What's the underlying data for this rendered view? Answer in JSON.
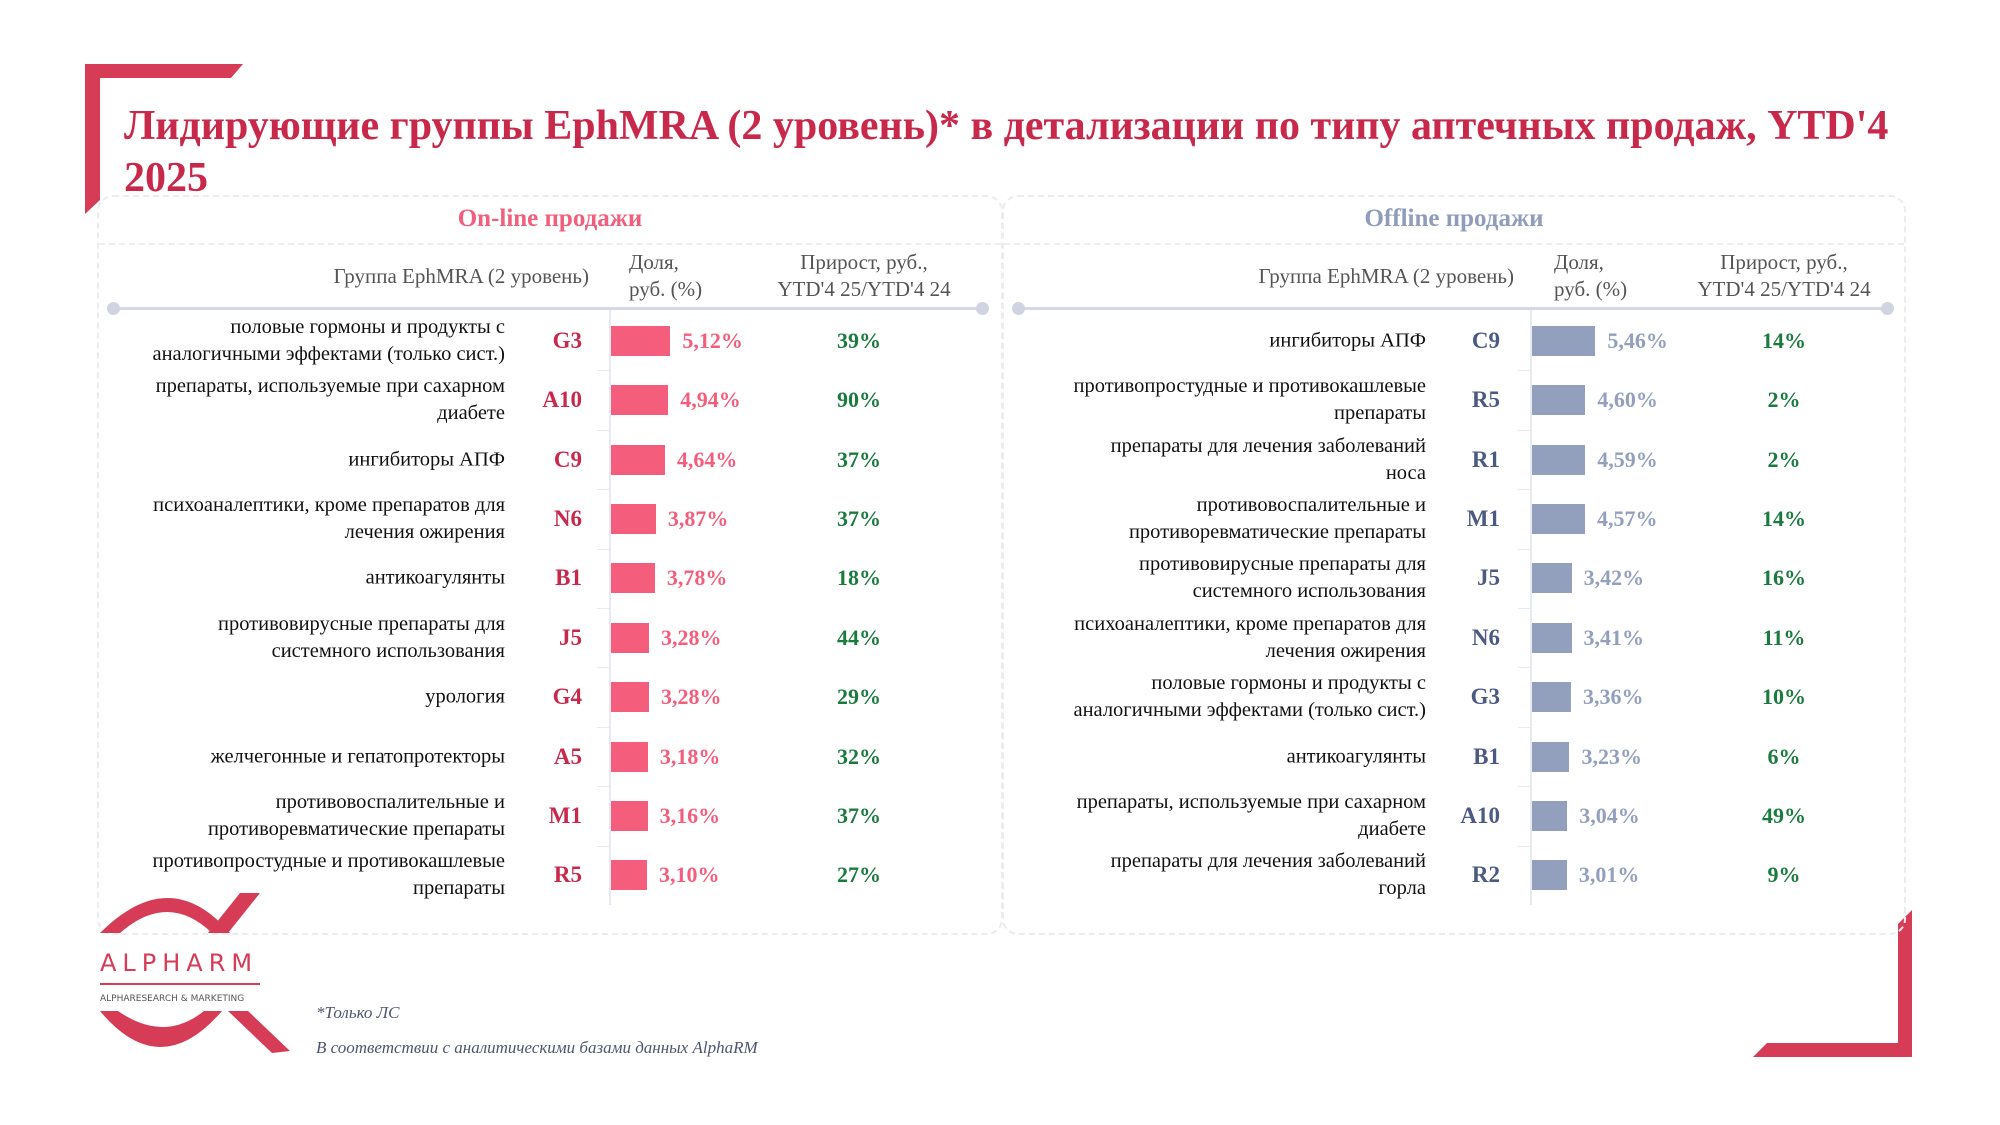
{
  "title": "Лидирующие группы EphMRA (2 уровень)* в детализации по типу аптечных продаж, YTD'4 2025",
  "colors": {
    "accent": "#d63c55",
    "title": "#c8284a",
    "online_bar": "#f45d7b",
    "online_code": "#c8284a",
    "online_title": "#f0607c",
    "offline_bar": "#929fbd",
    "offline_code": "#4a5a82",
    "offline_title": "#8f9cbc",
    "growth": "#1b7a3e"
  },
  "columns": {
    "group": "Группа EphMRA (2 уровень)",
    "share_line1": "Доля,",
    "share_line2": "руб. (%)",
    "growth_line1": "Прирост, руб.,",
    "growth_line2": "YTD'4 25/YTD'4 24"
  },
  "chart_data": [
    {
      "type": "bar",
      "orientation": "horizontal",
      "title": "On-line продажи",
      "xlabel": "Доля, руб. (%)",
      "ylabel": "Группа EphMRA (2 уровень)",
      "rows": [
        {
          "name": "половые гормоны и продукты с аналогичными эффектами (только сист.)",
          "code": "G3",
          "share": 5.12,
          "share_label": "5,12%",
          "growth": "39%"
        },
        {
          "name": "препараты, используемые при сахарном диабете",
          "code": "A10",
          "share": 4.94,
          "share_label": "4,94%",
          "growth": "90%"
        },
        {
          "name": "ингибиторы АПФ",
          "code": "C9",
          "share": 4.64,
          "share_label": "4,64%",
          "growth": "37%"
        },
        {
          "name": "психоаналептики, кроме препаратов для лечения ожирения",
          "code": "N6",
          "share": 3.87,
          "share_label": "3,87%",
          "growth": "37%"
        },
        {
          "name": "антикоагулянты",
          "code": "B1",
          "share": 3.78,
          "share_label": "3,78%",
          "growth": "18%"
        },
        {
          "name": "противовирусные препараты для системного использования",
          "code": "J5",
          "share": 3.28,
          "share_label": "3,28%",
          "growth": "44%"
        },
        {
          "name": "урология",
          "code": "G4",
          "share": 3.28,
          "share_label": "3,28%",
          "growth": "29%"
        },
        {
          "name": "желчегонные и гепатопротекторы",
          "code": "A5",
          "share": 3.18,
          "share_label": "3,18%",
          "growth": "32%"
        },
        {
          "name": "противовоспалительные и противоревматические препараты",
          "code": "M1",
          "share": 3.16,
          "share_label": "3,16%",
          "growth": "37%"
        },
        {
          "name": "противопростудные и противокашлевые препараты",
          "code": "R5",
          "share": 3.1,
          "share_label": "3,10%",
          "growth": "27%"
        }
      ]
    },
    {
      "type": "bar",
      "orientation": "horizontal",
      "title": "Offline продажи",
      "xlabel": "Доля, руб. (%)",
      "ylabel": "Группа EphMRA (2 уровень)",
      "rows": [
        {
          "name": "ингибиторы АПФ",
          "code": "C9",
          "share": 5.46,
          "share_label": "5,46%",
          "growth": "14%"
        },
        {
          "name": "противопростудные и противокашлевые препараты",
          "code": "R5",
          "share": 4.6,
          "share_label": "4,60%",
          "growth": "2%"
        },
        {
          "name": "препараты для лечения заболеваний носа",
          "code": "R1",
          "share": 4.59,
          "share_label": "4,59%",
          "growth": "2%"
        },
        {
          "name": "противовоспалительные и противоревматические препараты",
          "code": "M1",
          "share": 4.57,
          "share_label": "4,57%",
          "growth": "14%"
        },
        {
          "name": "противовирусные препараты для системного использования",
          "code": "J5",
          "share": 3.42,
          "share_label": "3,42%",
          "growth": "16%"
        },
        {
          "name": "психоаналептики, кроме препаратов для лечения ожирения",
          "code": "N6",
          "share": 3.41,
          "share_label": "3,41%",
          "growth": "11%"
        },
        {
          "name": "половые гормоны и продукты с аналогичными эффектами (только сист.)",
          "code": "G3",
          "share": 3.36,
          "share_label": "3,36%",
          "growth": "10%"
        },
        {
          "name": "антикоагулянты",
          "code": "B1",
          "share": 3.23,
          "share_label": "3,23%",
          "growth": "6%"
        },
        {
          "name": "препараты, используемые при сахарном диабете",
          "code": "A10",
          "share": 3.04,
          "share_label": "3,04%",
          "growth": "49%"
        },
        {
          "name": "препараты для лечения заболеваний горла",
          "code": "R2",
          "share": 3.01,
          "share_label": "3,01%",
          "growth": "9%"
        }
      ]
    }
  ],
  "logo": {
    "name": "ALPHARM",
    "subtitle": "ALPHARESEARCH & MARKETING"
  },
  "footnotes": {
    "note1": "*Только ЛС",
    "note2": "В соответствии с аналитическими базами данных AlphaRM"
  }
}
